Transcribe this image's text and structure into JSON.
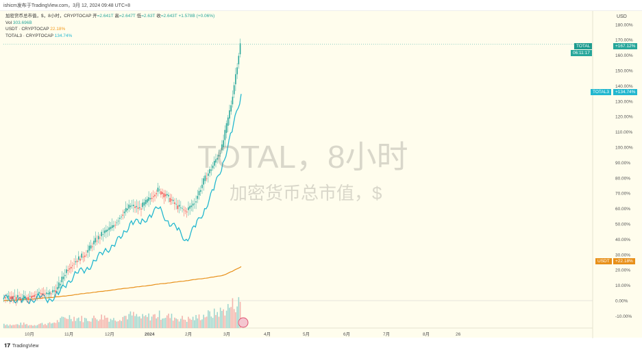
{
  "header": {
    "attribution": "ishicm发布于TradingView.com，3月 12, 2024 09:48 UTC+8"
  },
  "legend": {
    "main": "加密货币总市值，$，8小时，CRYPTOCAP",
    "open_l": "开",
    "open": "=2.641T",
    "high_l": "高",
    "high": "=2.647T",
    "low_l": "低",
    "low": "=2.63T",
    "close_l": "收",
    "close": "=2.643T",
    "change": "+1.578B (+0.06%)",
    "vol_l": "Vol",
    "vol": "303.696B",
    "usdt_l": "USDT · CRYPTOCAP",
    "usdt": "22.18%",
    "total3_l": "TOTAL3 · CRYPTOCAP",
    "total3": "134.74%"
  },
  "watermark": {
    "line1": "TOTAL，8小时",
    "line2": "加密货币总市值，$"
  },
  "axis": {
    "currency": "USD",
    "ticks": [
      "180.00%",
      "170.00%",
      "160.00%",
      "150.00%",
      "140.00%",
      "130.00%",
      "120.00%",
      "110.00%",
      "100.00%",
      "90.00%",
      "80.00%",
      "70.00%",
      "60.00%",
      "50.00%",
      "40.00%",
      "30.00%",
      "20.00%",
      "10.00%",
      "0.00%",
      "-10.00%"
    ],
    "xlabels": [
      "10月",
      "11月",
      "12月",
      "2024",
      "2月",
      "3月",
      "4月",
      "5月",
      "6月",
      "7月",
      "8月",
      "26"
    ]
  },
  "tags": {
    "total_name": "TOTAL",
    "total_val": "+167.12%",
    "total_time": "06:11:17",
    "total3_name": "TOTAL3",
    "total3_val": "+134.74%",
    "usdt_name": "USDT",
    "usdt_val": "+22.18%"
  },
  "colors": {
    "up": "#26a69a",
    "down": "#ef5350",
    "total3": "#22b7cf",
    "usdt": "#e8901a"
  },
  "footer": {
    "brand": "TradingView"
  },
  "chart_data": {
    "type": "line",
    "ylabel": "%",
    "ylim": [
      -15,
      185
    ],
    "series": [
      {
        "name": "TOTAL",
        "values": [
          2,
          3,
          1,
          3,
          5,
          4,
          8,
          20,
          26,
          30,
          38,
          44,
          48,
          56,
          62,
          60,
          66,
          72,
          68,
          62,
          58,
          64,
          78,
          88,
          100,
          128,
          167.12
        ]
      },
      {
        "name": "TOTAL3",
        "values": [
          1,
          2,
          -1,
          1,
          2,
          1,
          4,
          12,
          18,
          20,
          26,
          32,
          36,
          42,
          52,
          50,
          56,
          60,
          52,
          46,
          40,
          48,
          60,
          72,
          90,
          110,
          134.74
        ]
      },
      {
        "name": "USDT",
        "values": [
          0,
          0.3,
          0.6,
          1,
          1.5,
          2,
          2.5,
          3.2,
          4,
          4.8,
          5.5,
          6.2,
          7,
          7.8,
          8.5,
          9.2,
          10,
          10.8,
          11.5,
          12.2,
          13,
          13.8,
          14.6,
          15.4,
          16.5,
          19,
          22.18
        ]
      }
    ],
    "volume": [
      3,
      2,
      3,
      2,
      3,
      3,
      5,
      8,
      7,
      6,
      7,
      8,
      6,
      8,
      9,
      7,
      8,
      9,
      8,
      7,
      6,
      7,
      9,
      10,
      12,
      16,
      18
    ]
  }
}
